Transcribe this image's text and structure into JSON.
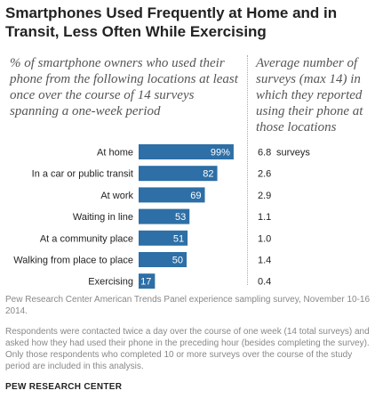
{
  "header": {
    "title": "Smartphones Used Frequently at Home and in Transit, Less Often While Exercising",
    "left_subtitle": "% of smartphone owners who used their phone from the following locations at least once over the course of 14 surveys spanning a one-week period",
    "right_subtitle": "Average number of surveys (max 14) in which they reported using their phone at those locations"
  },
  "chart_data": {
    "type": "bar",
    "orientation": "horizontal",
    "categories": [
      "At home",
      "In a car or public transit",
      "At work",
      "Waiting in line",
      "At a community place",
      "Walking from place to place",
      "Exercising"
    ],
    "series": [
      {
        "values": [
          99,
          82,
          69,
          53,
          51,
          50,
          17
        ]
      }
    ],
    "value_labels": [
      "99%",
      "82",
      "69",
      "53",
      "51",
      "50",
      "17"
    ],
    "average_surveys": [
      "6.8",
      "2.6",
      "2.9",
      "1.1",
      "1.0",
      "1.4",
      "0.4"
    ],
    "average_unit_label": "surveys",
    "xlim": [
      0,
      100
    ],
    "bar_color": "#2d6fa6",
    "grid": false
  },
  "footer": {
    "source": "Pew Research Center American Trends Panel experience sampling survey, November 10-16 2014.",
    "note": "Respondents were contacted twice a day over the course of one week (14 total surveys) and asked how they had used their phone in the preceding hour (besides completing the survey). Only those respondents who completed 10 or more surveys over the course of the study period are included in this analysis.",
    "brand": "PEW RESEARCH CENTER"
  }
}
